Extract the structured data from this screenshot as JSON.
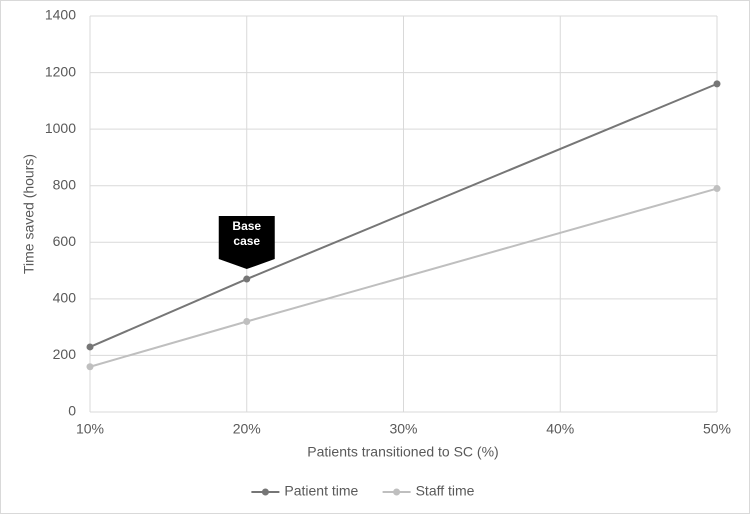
{
  "chart_data": {
    "type": "line",
    "x_label": "Patients transitioned to SC (%)",
    "y_label": "Time saved (hours)",
    "x": [
      10,
      20,
      50
    ],
    "series": [
      {
        "name": "Patient time",
        "color": "#767676",
        "values": [
          230,
          470,
          1160
        ]
      },
      {
        "name": "Staff time",
        "color": "#bfbfbf",
        "values": [
          160,
          320,
          790
        ]
      }
    ],
    "xlim": [
      10,
      50
    ],
    "xticks": [
      {
        "value": 10,
        "label": "10%"
      },
      {
        "value": 20,
        "label": "20%"
      },
      {
        "value": 30,
        "label": "30%"
      },
      {
        "value": 40,
        "label": "40%"
      },
      {
        "value": 50,
        "label": "50%"
      }
    ],
    "ylim": [
      0,
      1400
    ],
    "yticks": [
      0,
      200,
      400,
      600,
      800,
      1000,
      1200,
      1400
    ],
    "grid": true,
    "legend": "bottom",
    "annotation": "Base case"
  }
}
